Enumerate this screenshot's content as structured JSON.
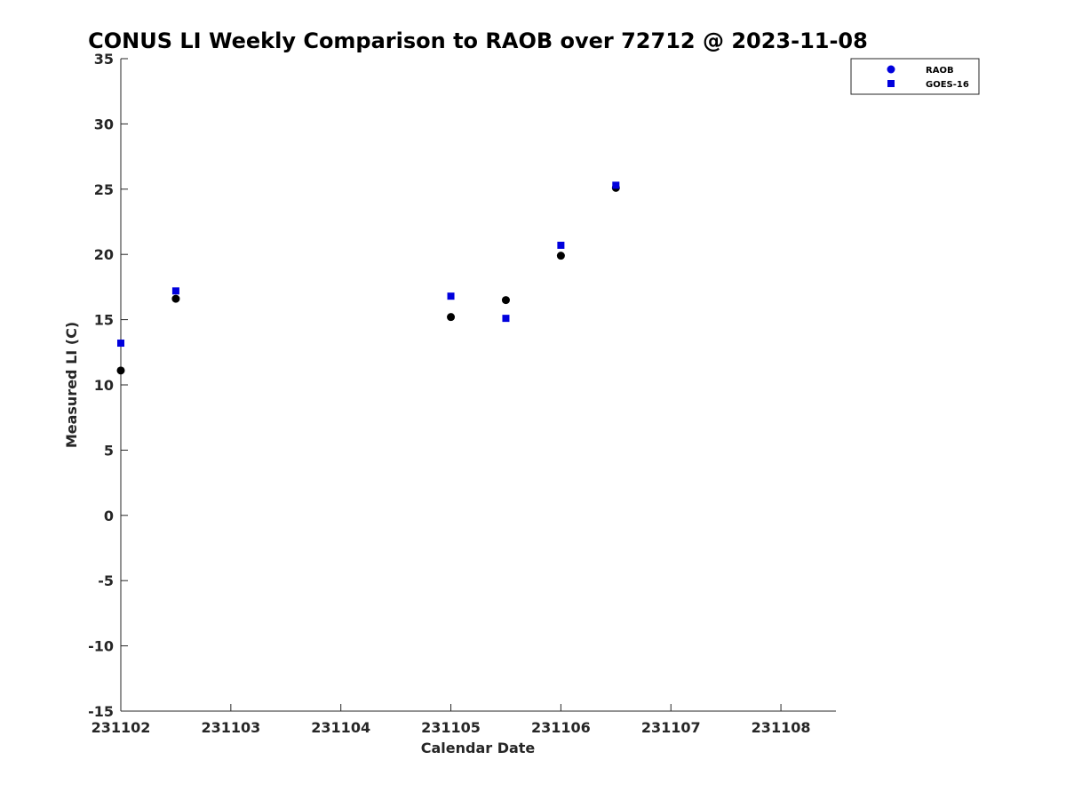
{
  "chart_data": {
    "type": "scatter",
    "title": "CONUS LI Weekly Comparison to RAOB over 72712 @ 2023-11-08",
    "xlabel": "Calendar Date",
    "ylabel": "Measured LI (C)",
    "x_ticks": [
      "231102",
      "231103",
      "231104",
      "231105",
      "231106",
      "231107",
      "231108"
    ],
    "x_range": [
      "231102",
      "231108 12:00"
    ],
    "ylim": [
      -15,
      35
    ],
    "y_ticks": [
      "-15",
      "-10",
      "-5",
      "0",
      "5",
      "10",
      "15",
      "20",
      "25",
      "30",
      "35"
    ],
    "grid": false,
    "legend_position": "top-right",
    "series": [
      {
        "name": "RAOB",
        "marker": "circle",
        "legend_color": "#0000dd",
        "point_color": "#000000",
        "x": [
          "231102 00:00",
          "231102 12:00",
          "231105 00:00",
          "231105 12:00",
          "231106 00:00",
          "231106 12:00"
        ],
        "y": [
          11.1,
          16.6,
          15.2,
          16.5,
          19.9,
          25.1
        ]
      },
      {
        "name": "GOES-16",
        "marker": "square",
        "legend_color": "#0000dd",
        "point_color": "#0000dd",
        "x": [
          "231102 00:00",
          "231102 12:00",
          "231105 00:00",
          "231105 12:00",
          "231106 00:00",
          "231106 12:00"
        ],
        "y": [
          13.2,
          17.2,
          16.8,
          15.1,
          20.7,
          25.3
        ]
      }
    ]
  }
}
